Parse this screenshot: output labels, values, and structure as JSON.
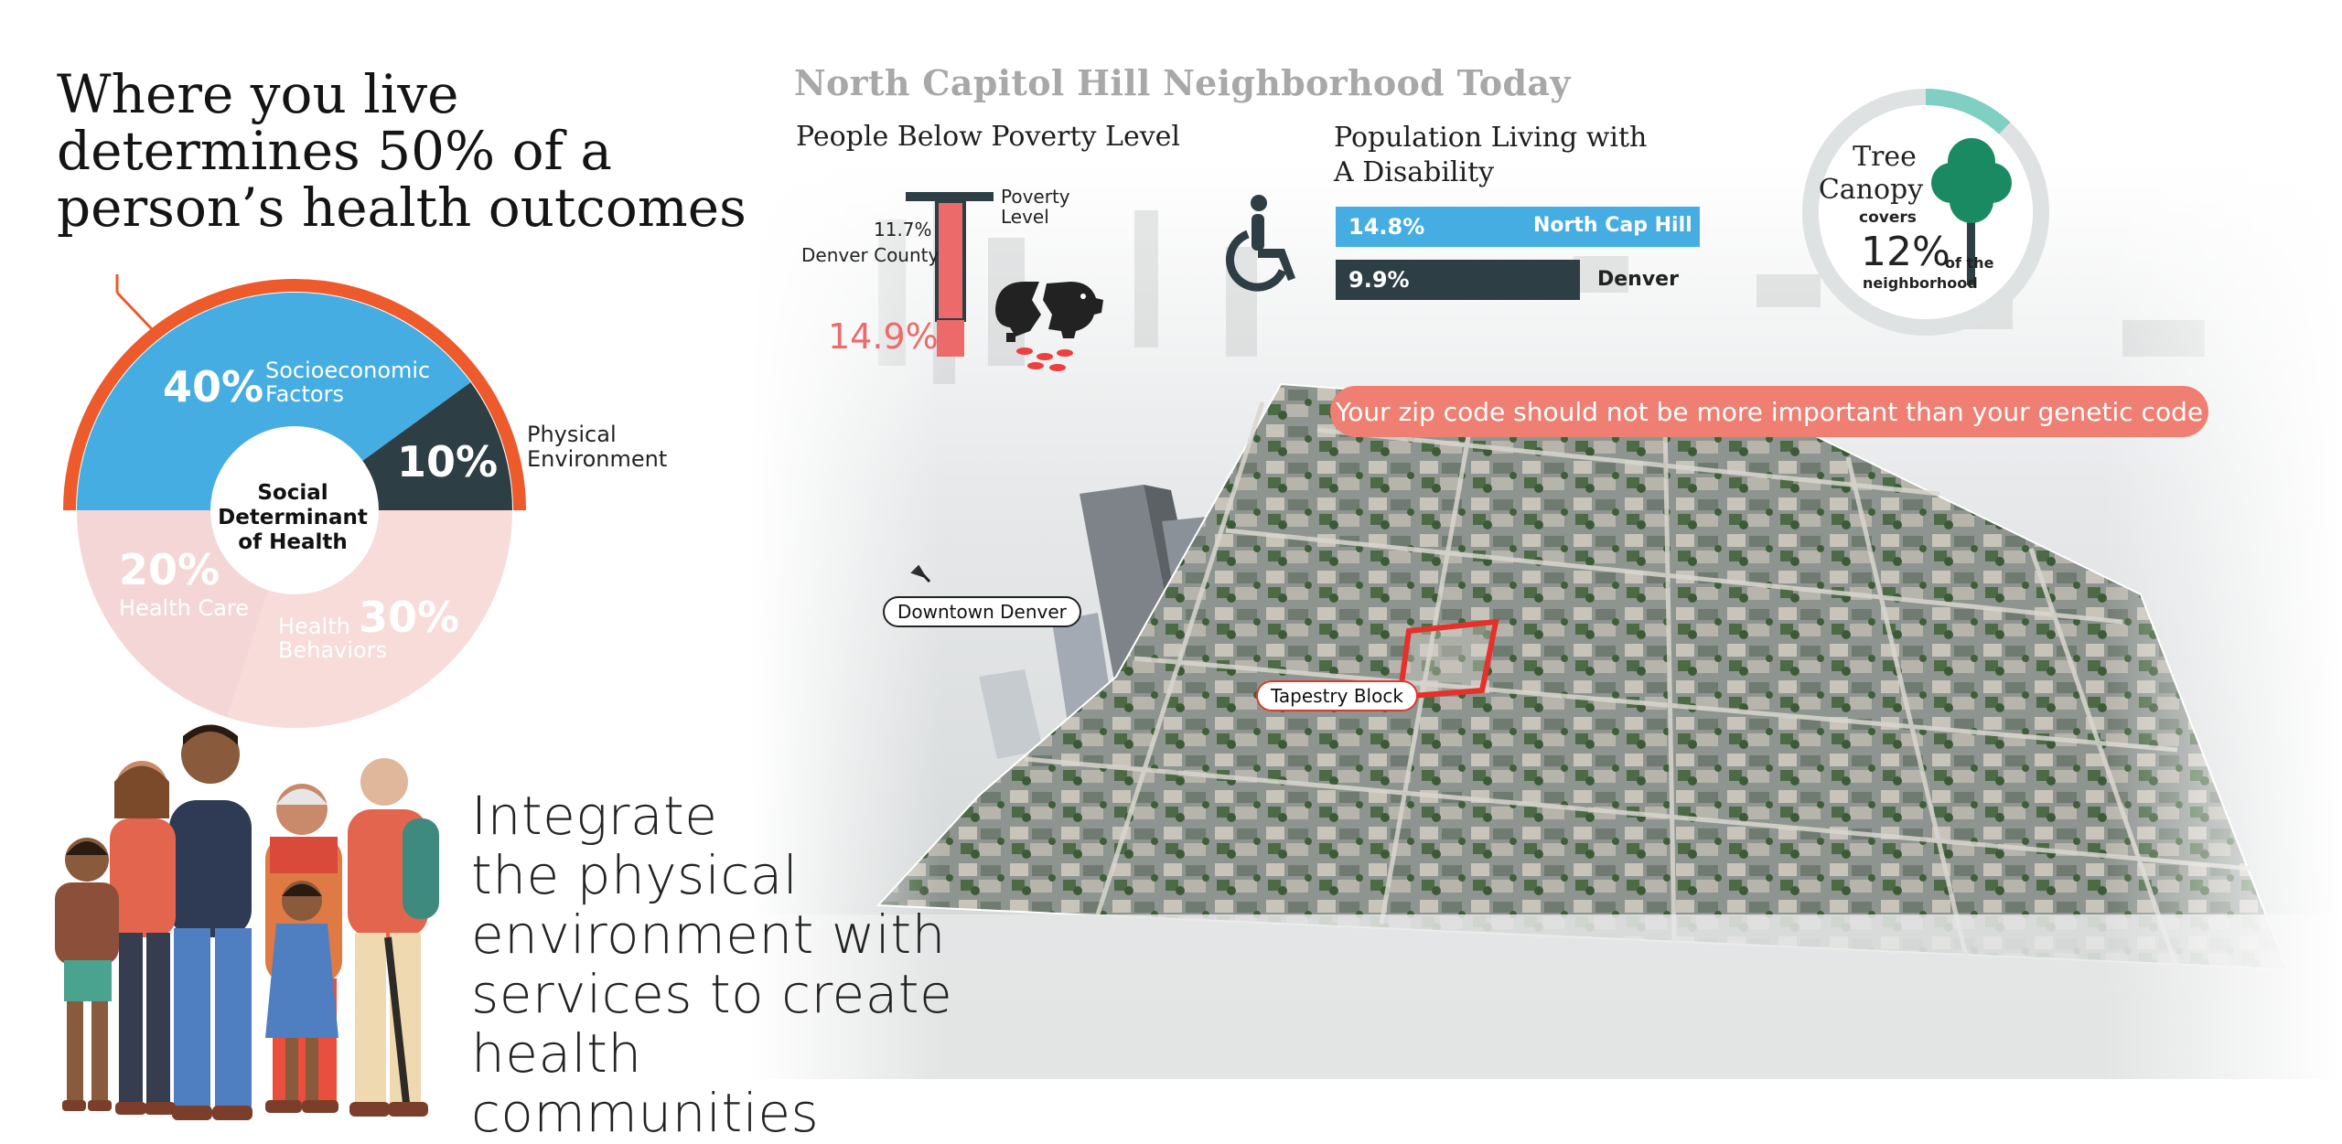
{
  "headline": {
    "line1": "Where you live",
    "line2": "determines 50% of a",
    "line3": "person’s health outcomes"
  },
  "donut": {
    "center_line1": "Social",
    "center_line2": "Determinant",
    "center_line3": "of Health",
    "segments": [
      {
        "pct": "40%",
        "label_line1": "Socioeconomic",
        "label_line2": "Factors",
        "color": "#45ade2"
      },
      {
        "pct": "10%",
        "label_line1": "Physical",
        "label_line2": "Environment",
        "color": "#2d3e44"
      },
      {
        "pct": "30%",
        "label_line1": "Health",
        "label_line2": "Behaviors",
        "color": "#f7dcda"
      },
      {
        "pct": "20%",
        "label_line1": "Health Care",
        "color": "#f5d6d6"
      }
    ],
    "accent_color": "#ed5a2c"
  },
  "integrate": {
    "line1": "Integrate",
    "line2": "the physical",
    "line3": "environment with",
    "line4": "services to create",
    "line5": "health communities"
  },
  "stats": {
    "title": "North Capitol Hill Neighborhood Today",
    "poverty": {
      "heading": "People Below Poverty Level",
      "indicator_label_line1": "Poverty",
      "indicator_label_line2": "Level",
      "county_pct": "11.7%",
      "county_name": "Denver County",
      "local_pct": "14.9%",
      "bar_color": "#ec6a6a",
      "icon": "broken-piggy-bank-icon"
    },
    "disability": {
      "heading_line1": "Population Living with",
      "heading_line2": "A Disability",
      "icon": "wheelchair-icon",
      "bars": [
        {
          "value": "14.8%",
          "name": "North Cap Hill",
          "fraction": 0.148,
          "color": "#45ade2"
        },
        {
          "value": "9.9%",
          "name": "Denver",
          "fraction": 0.099,
          "color": "#2d3e44"
        }
      ]
    },
    "tree_canopy": {
      "title_line1": "Tree",
      "title_line2": "Canopy",
      "covers": "covers",
      "pct": "12%",
      "of_the": "of the",
      "neighborhood": "neighborhood",
      "fraction": 0.12,
      "color": "#7fcfc2"
    }
  },
  "banner": {
    "text": "Your zip code should not be more important than your genetic code"
  },
  "map": {
    "downtown_label": "Downtown Denver",
    "tapestry_label": "Tapestry Block"
  }
}
